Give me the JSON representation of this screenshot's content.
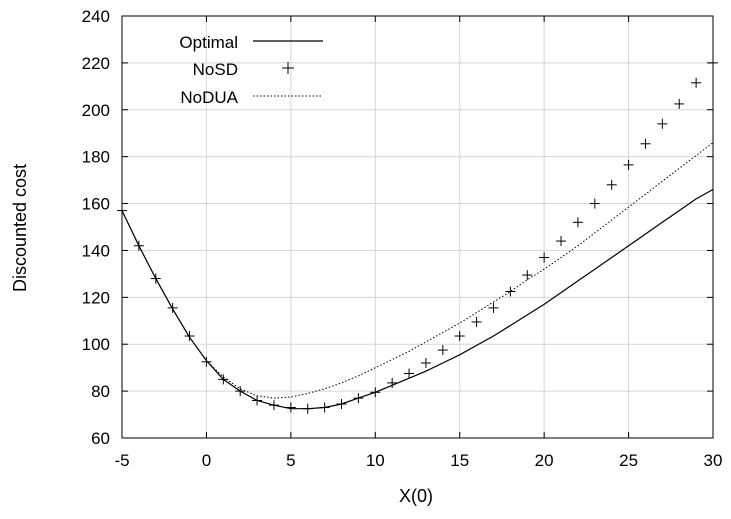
{
  "chart_data": {
    "type": "line",
    "title": "",
    "xlabel": "X(0)",
    "ylabel": "Discounted cost",
    "xlim": [
      -5,
      30
    ],
    "ylim": [
      60,
      240
    ],
    "xticks": [
      -5,
      0,
      5,
      10,
      15,
      20,
      25,
      30
    ],
    "yticks": [
      60,
      80,
      100,
      120,
      140,
      160,
      180,
      200,
      220,
      240
    ],
    "grid": true,
    "legend_position": "top-left",
    "series": [
      {
        "name": "Optimal",
        "style": "solid-line",
        "x": [
          -5,
          -4,
          -3,
          -2,
          -1,
          0,
          1,
          2,
          3,
          4,
          5,
          6,
          7,
          8,
          9,
          10,
          11,
          12,
          13,
          14,
          15,
          16,
          17,
          18,
          19,
          20,
          21,
          22,
          23,
          24,
          25,
          26,
          27,
          28,
          29,
          30
        ],
        "y": [
          157,
          142,
          128,
          115,
          103,
          93,
          85,
          80,
          76,
          74,
          72.5,
          72.5,
          73,
          74.5,
          77,
          79.5,
          82.5,
          85.5,
          88.5,
          92,
          95.5,
          99.5,
          103.5,
          108,
          112.5,
          117,
          122,
          127,
          132,
          137,
          142,
          147,
          152,
          157,
          162,
          166
        ]
      },
      {
        "name": "NoSD",
        "style": "plus-markers",
        "x": [
          -5,
          -4,
          -3,
          -2,
          -1,
          0,
          1,
          2,
          3,
          4,
          5,
          6,
          7,
          8,
          9,
          10,
          11,
          12,
          13,
          14,
          15,
          16,
          17,
          18,
          19,
          20,
          21,
          22,
          23,
          24,
          25,
          26,
          27,
          28,
          29,
          30
        ],
        "y": [
          157,
          142,
          128,
          115.5,
          103.5,
          92.5,
          85,
          80,
          76,
          74,
          73,
          72.5,
          73,
          74.5,
          77,
          79.5,
          83.5,
          87.5,
          92,
          97.5,
          103.5,
          109.5,
          115.5,
          122.5,
          129.5,
          137,
          144,
          152,
          160,
          168,
          176.5,
          185.5,
          194,
          202.5,
          211.5,
          220
        ]
      },
      {
        "name": "NoDUA",
        "style": "dotted-line",
        "x": [
          -5,
          -4,
          -3,
          -2,
          -1,
          0,
          1,
          2,
          3,
          4,
          5,
          6,
          7,
          8,
          9,
          10,
          11,
          12,
          13,
          14,
          15,
          16,
          17,
          18,
          19,
          20,
          21,
          22,
          23,
          24,
          25,
          26,
          27,
          28,
          29,
          30
        ],
        "y": [
          157,
          142,
          128,
          115,
          103,
          93,
          86,
          81,
          78,
          77,
          77.5,
          79,
          81,
          83.5,
          86.5,
          90,
          93.5,
          97,
          101,
          105,
          109,
          113.5,
          118,
          122.5,
          127.5,
          132,
          137,
          142,
          147.5,
          153,
          158.5,
          164,
          169.5,
          175,
          180.5,
          186
        ]
      }
    ]
  }
}
